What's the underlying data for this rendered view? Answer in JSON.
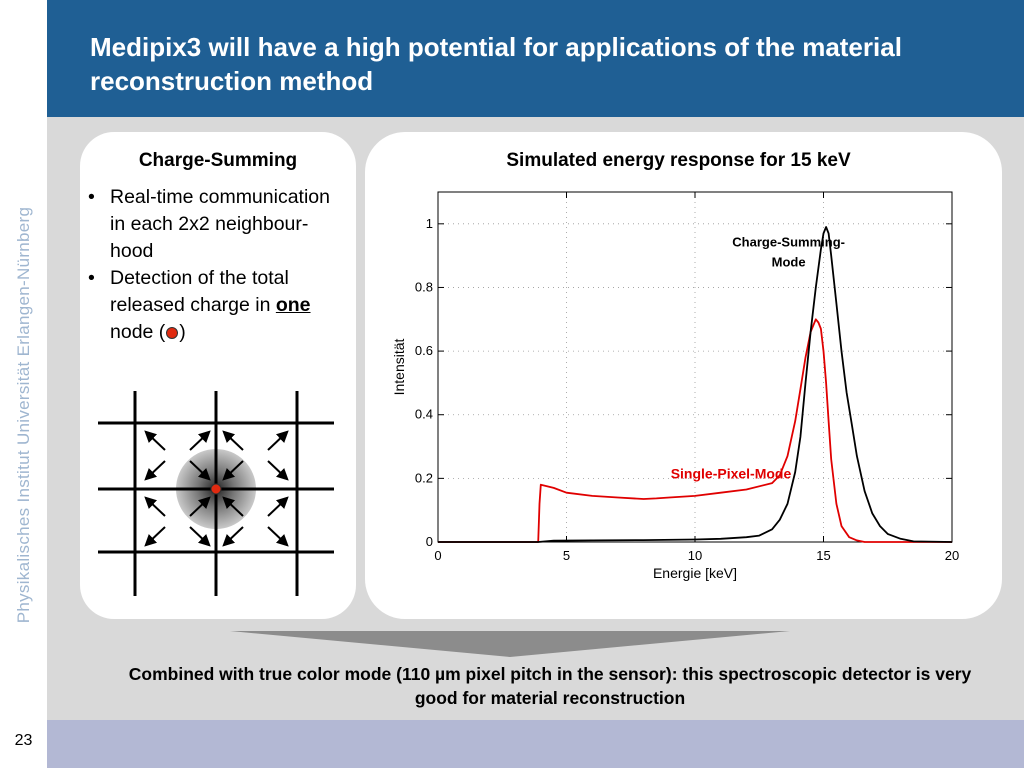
{
  "slide": {
    "title": "Medipix3 will have a high potential for applications of the material reconstruction method",
    "side_text": "Physikalisches Institut      Universität Erlangen-Nürnberg",
    "page_number": "23",
    "conclusion": "Combined with true color mode (110 µm pixel pitch in the sensor): this spectroscopic detector is very good for material reconstruction",
    "colors": {
      "title_bar": "#1f5f94",
      "footer_bar": "#b3b8d4",
      "background": "#d9d9d9",
      "spm_line": "#e00000",
      "csm_line": "#000000"
    }
  },
  "left_panel": {
    "heading": "Charge-Summing",
    "bullets": [
      {
        "text": "Real-time communication in each 2x2 neighbour-hood"
      },
      {
        "pre": "Detection of the total released charge in ",
        "bold": "one",
        "post": " node (",
        "close": ")"
      }
    ],
    "icons": [
      "arrow-icon",
      "red-node-dot-icon"
    ]
  },
  "chart_data": {
    "type": "line",
    "title": "Simulated energy response for 15 keV",
    "xlabel": "Energie [keV]",
    "ylabel": "Intensität",
    "xlim": [
      0,
      20
    ],
    "ylim": [
      0,
      1.1
    ],
    "xticks": [
      0,
      5,
      10,
      15,
      20
    ],
    "yticks": [
      0,
      0.2,
      0.4,
      0.6,
      0.8,
      1
    ],
    "grid": "dotted",
    "annotations": [
      {
        "text": "Charge-Summing-Mode",
        "x": 15.2,
        "y": 0.96
      },
      {
        "text": "Single-Pixel-Mode",
        "x": 11.4,
        "y": 0.2
      }
    ],
    "series": [
      {
        "label": "Single-Pixel-Mode",
        "color": "#e00000",
        "x": [
          0,
          3.9,
          3.95,
          4.0,
          4.5,
          5,
          6,
          7,
          8,
          8.5,
          9,
          10,
          11,
          12,
          13,
          13.3,
          13.6,
          13.9,
          14.1,
          14.3,
          14.5,
          14.7,
          14.8,
          14.9,
          15.0,
          15.1,
          15.2,
          15.3,
          15.5,
          15.7,
          16.0,
          16.3,
          16.6,
          17.0,
          17.5,
          20
        ],
        "y": [
          0,
          0,
          0.12,
          0.18,
          0.17,
          0.155,
          0.145,
          0.14,
          0.135,
          0.137,
          0.14,
          0.145,
          0.155,
          0.165,
          0.185,
          0.21,
          0.27,
          0.38,
          0.48,
          0.58,
          0.66,
          0.7,
          0.69,
          0.67,
          0.6,
          0.5,
          0.38,
          0.26,
          0.12,
          0.05,
          0.015,
          0.005,
          0,
          0,
          0,
          0
        ]
      },
      {
        "label": "Charge-Summing-Mode",
        "color": "#000000",
        "x": [
          0,
          3.9,
          4.5,
          6,
          8,
          10,
          11,
          12,
          12.5,
          13,
          13.3,
          13.6,
          13.9,
          14.1,
          14.3,
          14.5,
          14.7,
          14.9,
          15.0,
          15.1,
          15.2,
          15.3,
          15.5,
          15.7,
          15.9,
          16.1,
          16.3,
          16.6,
          16.9,
          17.2,
          17.5,
          18.0,
          18.5,
          20
        ],
        "y": [
          0,
          0,
          0.004,
          0.005,
          0.006,
          0.008,
          0.01,
          0.015,
          0.02,
          0.04,
          0.07,
          0.12,
          0.22,
          0.33,
          0.5,
          0.66,
          0.8,
          0.92,
          0.97,
          0.99,
          0.97,
          0.9,
          0.75,
          0.6,
          0.47,
          0.37,
          0.27,
          0.16,
          0.09,
          0.05,
          0.025,
          0.01,
          0.002,
          0
        ]
      }
    ]
  }
}
